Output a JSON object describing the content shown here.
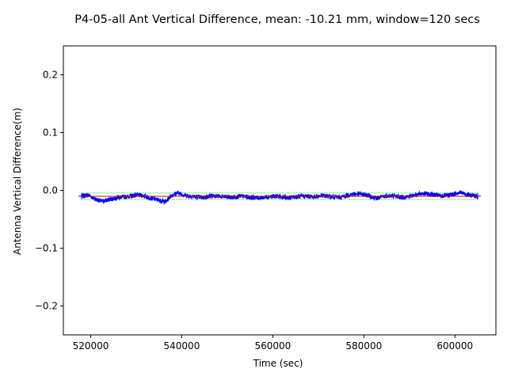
{
  "chart_data": {
    "type": "line",
    "title": "P4-05-all Ant Vertical Difference, mean: -10.21 mm, window=120 secs",
    "xlabel": "Time (sec)",
    "ylabel": "Antenna Vertical Difference(m)",
    "xlim": [
      514000,
      609000
    ],
    "ylim": [
      -0.25,
      0.25
    ],
    "xticks": [
      520000,
      540000,
      560000,
      580000,
      600000
    ],
    "xtick_labels": [
      "520000",
      "540000",
      "560000",
      "580000",
      "600000"
    ],
    "yticks": [
      -0.2,
      -0.1,
      0.0,
      0.1,
      0.2
    ],
    "ytick_labels": [
      "−0.2",
      "−0.1",
      "0.0",
      "0.1",
      "0.2"
    ],
    "grid": false,
    "noise_amplitude": 0.004,
    "series": [
      {
        "role": "data",
        "color": "#0000ff",
        "x": [
          518000,
          519500,
          521000,
          522500,
          524000,
          526000,
          528000,
          530000,
          531500,
          533000,
          535000,
          536500,
          537500,
          539000,
          541000,
          543000,
          545000,
          547000,
          549000,
          551000,
          553000,
          555000,
          557000,
          559000,
          561000,
          563000,
          565000,
          567000,
          569000,
          571000,
          573000,
          575000,
          577000,
          579000,
          581000,
          583000,
          585000,
          587000,
          589000,
          591000,
          593000,
          595000,
          597000,
          599000,
          601000,
          603000,
          605000
        ],
        "y": [
          -0.01,
          -0.008,
          -0.015,
          -0.019,
          -0.016,
          -0.012,
          -0.011,
          -0.008,
          -0.009,
          -0.013,
          -0.017,
          -0.02,
          -0.01,
          -0.004,
          -0.009,
          -0.011,
          -0.012,
          -0.009,
          -0.011,
          -0.012,
          -0.01,
          -0.012,
          -0.013,
          -0.011,
          -0.01,
          -0.013,
          -0.011,
          -0.01,
          -0.011,
          -0.009,
          -0.011,
          -0.012,
          -0.007,
          -0.006,
          -0.009,
          -0.014,
          -0.009,
          -0.01,
          -0.012,
          -0.008,
          -0.005,
          -0.007,
          -0.01,
          -0.008,
          -0.003,
          -0.008,
          -0.01
        ]
      },
      {
        "role": "upper-band",
        "color": "#90ee90",
        "x": [
          518000,
          605000
        ],
        "y": [
          -0.0045,
          -0.0045
        ]
      },
      {
        "role": "lower-band",
        "color": "#90ee90",
        "x": [
          518000,
          605000
        ],
        "y": [
          -0.0155,
          -0.0155
        ]
      },
      {
        "role": "mean",
        "color": "#cc0000",
        "x": [
          518000,
          605000
        ],
        "y": [
          -0.01021,
          -0.01021
        ]
      }
    ]
  }
}
